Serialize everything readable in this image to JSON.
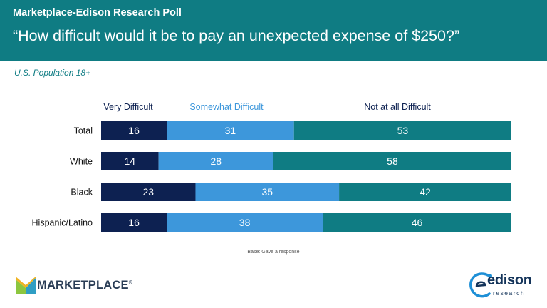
{
  "header": {
    "kicker": "Marketplace-Edison Research Poll",
    "question": "“How difficult would it be to pay an unexpected expense of $250?”"
  },
  "subtitle": "U.S. Population 18+",
  "footnote": "Base: Gave a response",
  "logos": {
    "marketplace": "MARKETPLACE",
    "marketplace_mark": "®",
    "edison_word": "edison",
    "edison_sub": "research"
  },
  "colors": {
    "header_bg": "#0f7c83",
    "very_difficult": "#0d2151",
    "somewhat_difficult": "#3d97db",
    "not_at_all_difficult": "#0f7c83"
  },
  "chart_data": {
    "type": "bar",
    "orientation": "horizontal",
    "stacked": true,
    "categories": [
      "Total",
      "White",
      "Black",
      "Hispanic/Latino"
    ],
    "series": [
      {
        "name": "Very Difficult",
        "values": [
          16,
          14,
          23,
          16
        ],
        "color": "#0d2151",
        "label_color": "#0d2151"
      },
      {
        "name": "Somewhat Difficult",
        "values": [
          31,
          28,
          35,
          38
        ],
        "color": "#3d97db",
        "label_color": "#3d97db"
      },
      {
        "name": "Not at all Difficult",
        "values": [
          53,
          58,
          42,
          46
        ],
        "color": "#0f7c83",
        "label_color": "#0d2151"
      }
    ],
    "xlim": [
      0,
      100
    ],
    "legend_placement": "top",
    "grid": false
  }
}
